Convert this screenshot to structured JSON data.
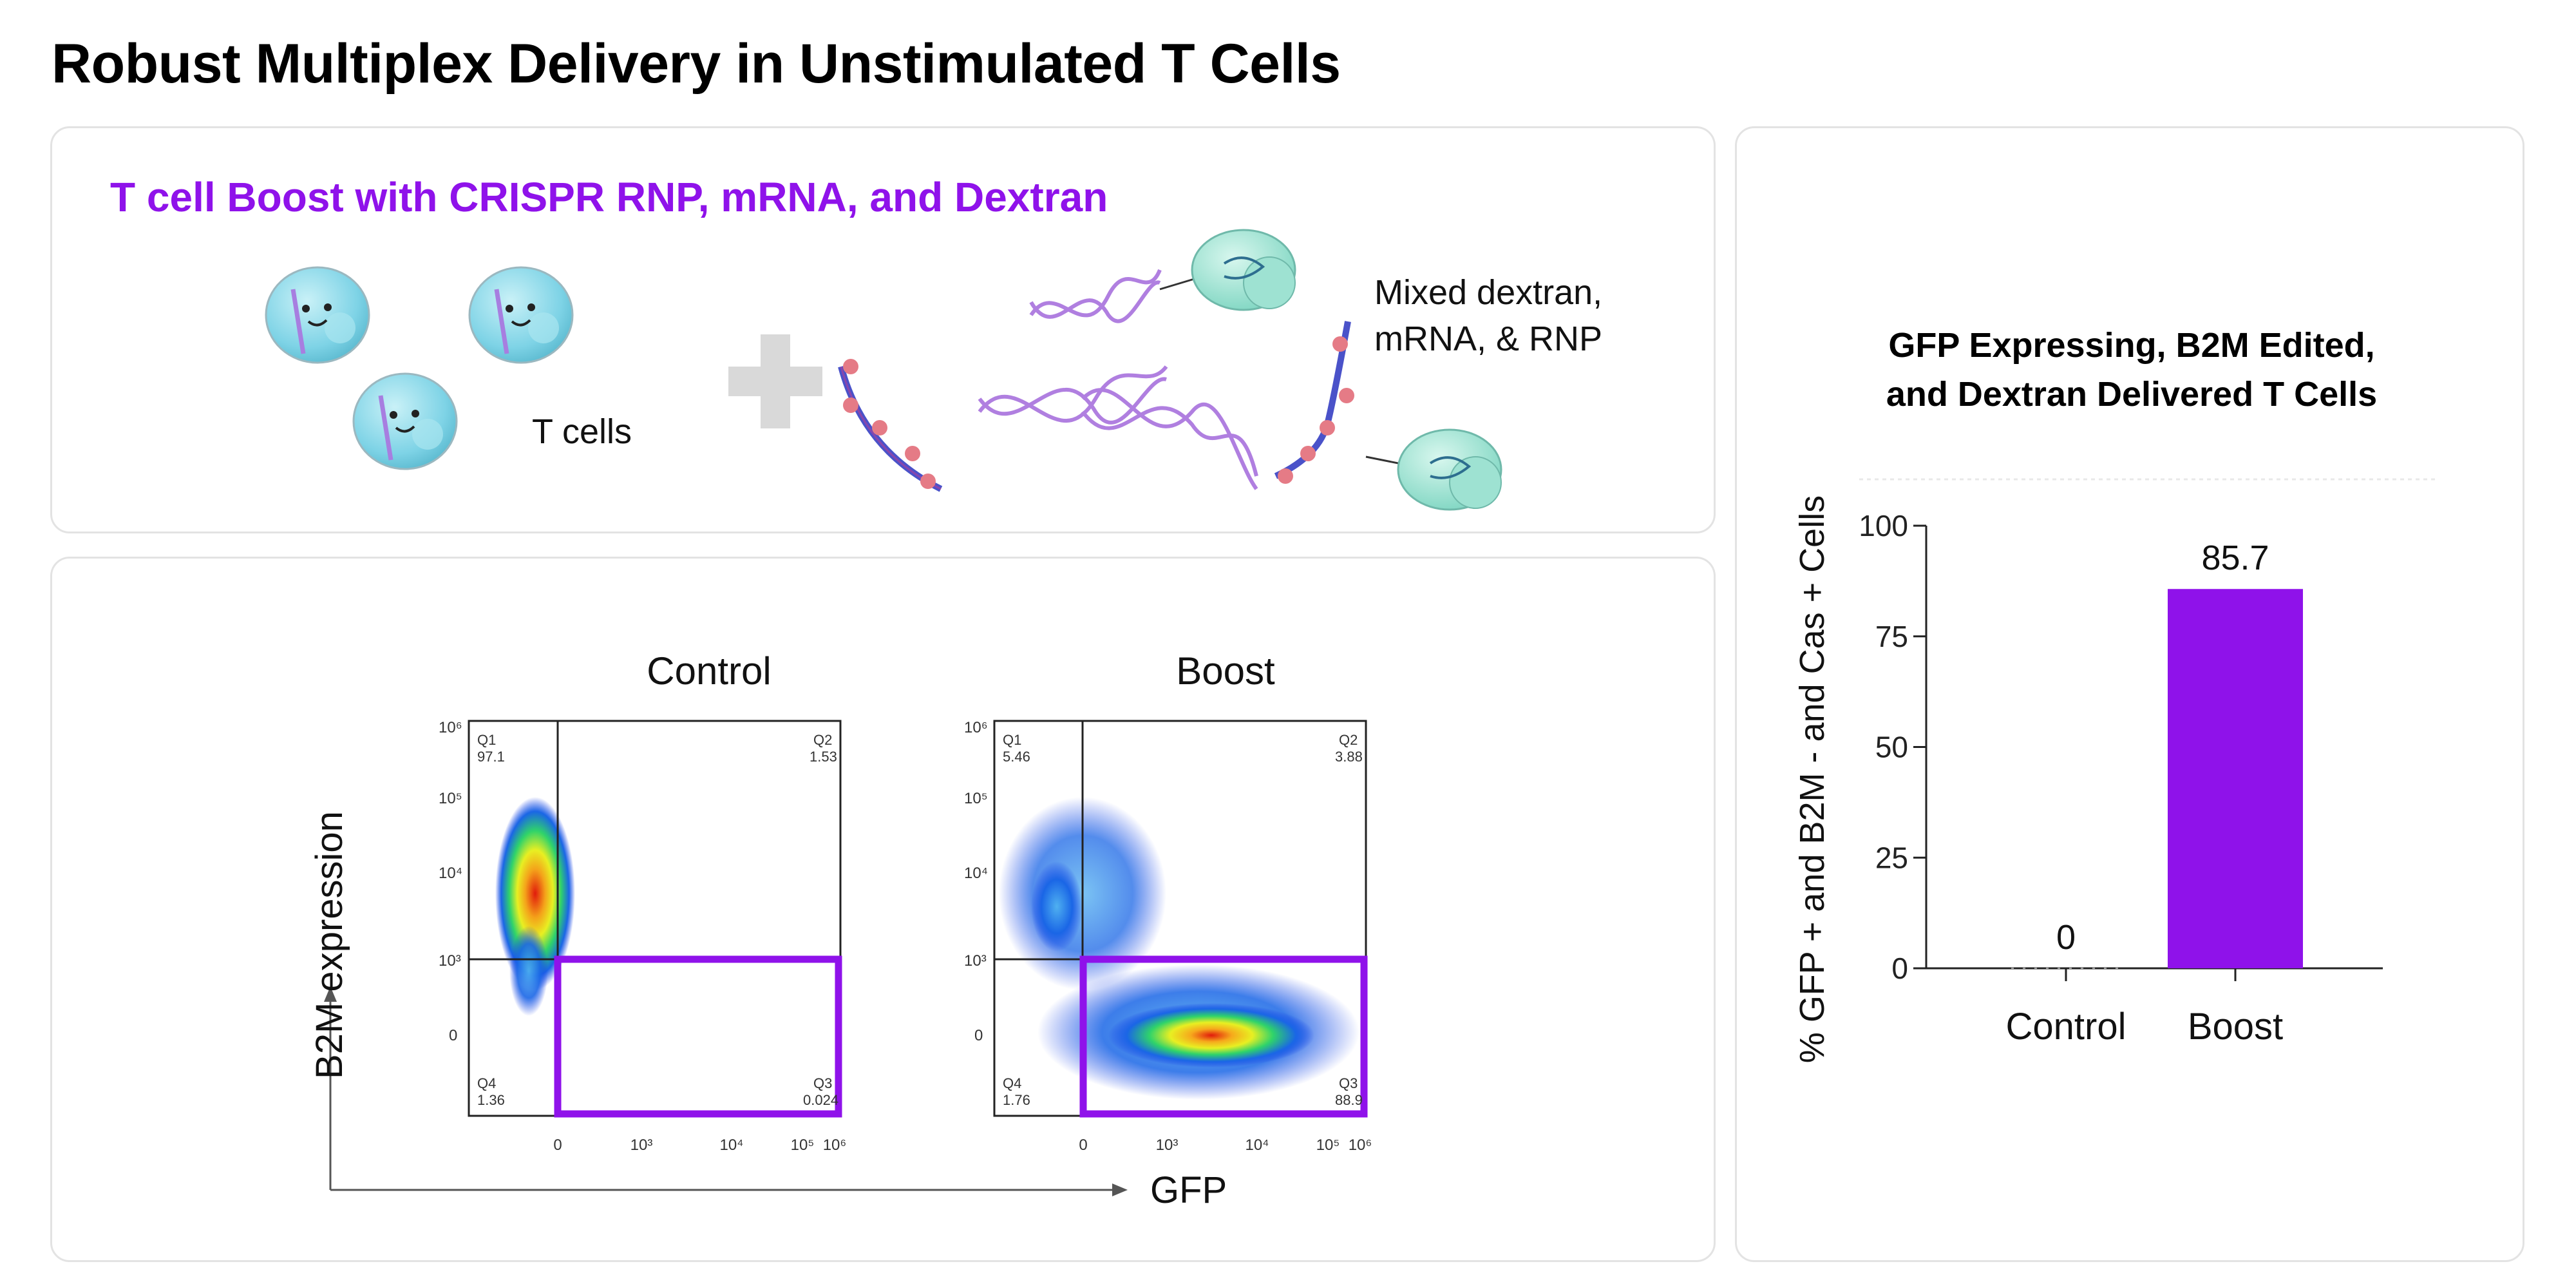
{
  "page": {
    "title": "Robust Multiplex Delivery in Unstimulated T Cells"
  },
  "schematic": {
    "title": "T cell Boost with CRISPR RNP, mRNA, and Dextran",
    "tcells_label": "T cells",
    "mix_label_line1": "Mixed dextran,",
    "mix_label_line2": "mRNA, & RNP"
  },
  "flow": {
    "y_axis_label": "B2M expression",
    "x_axis_label": "GFP",
    "plots": [
      {
        "title": "Control",
        "q1_name": "Q1",
        "q1_value": "97.1",
        "q2_name": "Q2",
        "q2_value": "1.53",
        "q3_name": "Q3",
        "q3_value": "0.024",
        "q4_name": "Q4",
        "q4_value": "1.36"
      },
      {
        "title": "Boost",
        "q1_name": "Q1",
        "q1_value": "5.46",
        "q2_name": "Q2",
        "q2_value": "3.88",
        "q3_name": "Q3",
        "q3_value": "88.9",
        "q4_name": "Q4",
        "q4_value": "1.76"
      }
    ],
    "y_ticks": [
      "10⁶",
      "10⁵",
      "10⁴",
      "10³",
      "0"
    ],
    "x_ticks": [
      "0",
      "10³",
      "10⁴",
      "10⁵",
      "10⁶"
    ],
    "gate_color": "#8f12ea"
  },
  "chart_data": {
    "type": "bar",
    "title_line1": "GFP Expressing, B2M Edited,",
    "title_line2": "and Dextran Delivered T Cells",
    "categories": [
      "Control",
      "Boost"
    ],
    "values": [
      0,
      85.7
    ],
    "value_labels": [
      "0",
      "85.7"
    ],
    "ylabel": "% GFP + and B2M - and Cas + Cells",
    "xlabel": "",
    "ylim": [
      0,
      100
    ],
    "yticks": [
      0,
      25,
      50,
      75,
      100
    ],
    "bar_color": "#8f12ea"
  }
}
